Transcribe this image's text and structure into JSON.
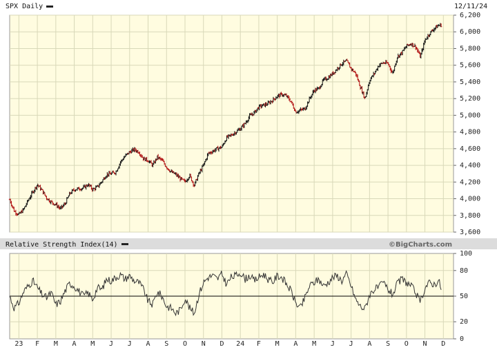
{
  "header": {
    "symbol_title": "SPX Daily",
    "date": "12/11/24"
  },
  "rsi_panel": {
    "title": "Relative Strength Index(14)"
  },
  "credit": "©BigCharts.com",
  "colors": {
    "plot_background": "#fffce0",
    "grid": "#d8d8b8",
    "panel_header": "#dcdcdc",
    "up_bar": "#111111",
    "down_bar": "#b01010",
    "rsi_line": "#333333"
  },
  "chart_data": [
    {
      "type": "line",
      "title": "SPX Daily",
      "style": "ohlc-bars",
      "ylim": [
        3600,
        6200
      ],
      "y_ticks": [
        "3,600",
        "3,800",
        "4,000",
        "4,200",
        "4,400",
        "4,600",
        "4,800",
        "5,000",
        "5,200",
        "5,400",
        "5,600",
        "5,800",
        "6,000",
        "6,200"
      ],
      "x_labels": [
        "23",
        "F",
        "M",
        "A",
        "M",
        "J",
        "J",
        "A",
        "S",
        "O",
        "N",
        "D",
        "24",
        "F",
        "M",
        "A",
        "M",
        "J",
        "J",
        "A",
        "S",
        "O",
        "N",
        "D"
      ],
      "x_label_positions": [
        0.5,
        1.5,
        2.5,
        3.5,
        4.5,
        5.5,
        6.5,
        7.5,
        8.5,
        9.5,
        10.5,
        11.5,
        12.5,
        13.5,
        14.5,
        15.5,
        16.5,
        17.5,
        18.5,
        19.5,
        20.5,
        21.5,
        22.5,
        23.5
      ],
      "x_unit": "months since Jan 2023",
      "grid": true,
      "series": [
        {
          "name": "SPX",
          "x": [
            0.0,
            0.25,
            0.5,
            0.75,
            1.0,
            1.25,
            1.5,
            1.75,
            2.0,
            2.25,
            2.5,
            2.75,
            3.0,
            3.25,
            3.5,
            3.75,
            4.0,
            4.25,
            4.5,
            4.75,
            5.0,
            5.25,
            5.5,
            5.75,
            6.0,
            6.25,
            6.5,
            6.75,
            7.0,
            7.25,
            7.5,
            7.75,
            8.0,
            8.25,
            8.5,
            8.75,
            9.0,
            9.25,
            9.5,
            9.75,
            10.0,
            10.25,
            10.5,
            10.75,
            11.0,
            11.25,
            11.5,
            11.75,
            12.0,
            12.25,
            12.5,
            12.75,
            13.0,
            13.25,
            13.5,
            13.75,
            14.0,
            14.25,
            14.5,
            14.75,
            15.0,
            15.25,
            15.5,
            15.75,
            16.0,
            16.25,
            16.5,
            16.75,
            17.0,
            17.25,
            17.5,
            17.75,
            18.0,
            18.25,
            18.5,
            18.75,
            19.0,
            19.25,
            19.5,
            19.75,
            20.0,
            20.25,
            20.5,
            20.75,
            21.0,
            21.25,
            21.5,
            21.75,
            22.0,
            22.25,
            22.5,
            22.75,
            23.0,
            23.25,
            23.4
          ],
          "values": [
            3990,
            3850,
            3810,
            3870,
            3980,
            4080,
            4170,
            4100,
            4010,
            3960,
            3930,
            3880,
            3940,
            4060,
            4110,
            4120,
            4130,
            4170,
            4110,
            4140,
            4210,
            4290,
            4300,
            4320,
            4440,
            4510,
            4560,
            4590,
            4560,
            4480,
            4460,
            4400,
            4500,
            4460,
            4380,
            4320,
            4290,
            4240,
            4200,
            4280,
            4160,
            4300,
            4400,
            4540,
            4570,
            4600,
            4620,
            4730,
            4760,
            4800,
            4840,
            4900,
            4990,
            5030,
            5100,
            5120,
            5140,
            5180,
            5230,
            5250,
            5230,
            5160,
            5040,
            5060,
            5080,
            5200,
            5300,
            5320,
            5420,
            5450,
            5500,
            5560,
            5620,
            5650,
            5560,
            5500,
            5340,
            5200,
            5420,
            5500,
            5600,
            5630,
            5620,
            5500,
            5700,
            5750,
            5830,
            5860,
            5820,
            5700,
            5900,
            5980,
            6040,
            6080,
            6080
          ]
        }
      ]
    },
    {
      "type": "line",
      "title": "Relative Strength Index(14)",
      "ylim": [
        0,
        100
      ],
      "y_ticks": [
        "0",
        "20",
        "50",
        "80",
        "100"
      ],
      "reference_line": 50,
      "grid": true,
      "series": [
        {
          "name": "RSI(14)",
          "x": [
            0.0,
            0.25,
            0.5,
            0.75,
            1.0,
            1.25,
            1.5,
            1.75,
            2.0,
            2.25,
            2.5,
            2.75,
            3.0,
            3.25,
            3.5,
            3.75,
            4.0,
            4.25,
            4.5,
            4.75,
            5.0,
            5.25,
            5.5,
            5.75,
            6.0,
            6.25,
            6.5,
            6.75,
            7.0,
            7.25,
            7.5,
            7.75,
            8.0,
            8.25,
            8.5,
            8.75,
            9.0,
            9.25,
            9.5,
            9.75,
            10.0,
            10.25,
            10.5,
            10.75,
            11.0,
            11.25,
            11.5,
            11.75,
            12.0,
            12.25,
            12.5,
            12.75,
            13.0,
            13.25,
            13.5,
            13.75,
            14.0,
            14.25,
            14.5,
            14.75,
            15.0,
            15.25,
            15.5,
            15.75,
            16.0,
            16.25,
            16.5,
            16.75,
            17.0,
            17.25,
            17.5,
            17.75,
            18.0,
            18.25,
            18.5,
            18.75,
            19.0,
            19.25,
            19.5,
            19.75,
            20.0,
            20.25,
            20.5,
            20.75,
            21.0,
            21.25,
            21.5,
            21.75,
            22.0,
            22.25,
            22.5,
            22.75,
            23.0,
            23.25,
            23.4
          ],
          "values": [
            50,
            36,
            42,
            55,
            62,
            68,
            60,
            52,
            48,
            54,
            40,
            44,
            56,
            65,
            62,
            56,
            50,
            54,
            46,
            60,
            58,
            70,
            68,
            72,
            75,
            70,
            74,
            68,
            66,
            58,
            44,
            40,
            55,
            50,
            38,
            36,
            30,
            34,
            48,
            36,
            30,
            52,
            66,
            72,
            74,
            70,
            76,
            64,
            72,
            74,
            78,
            70,
            74,
            68,
            72,
            76,
            70,
            66,
            74,
            72,
            64,
            56,
            42,
            36,
            48,
            62,
            66,
            70,
            62,
            66,
            72,
            74,
            68,
            76,
            62,
            46,
            38,
            35,
            52,
            58,
            60,
            66,
            58,
            52,
            64,
            70,
            66,
            62,
            54,
            42,
            60,
            66,
            64,
            68,
            58
          ]
        }
      ]
    }
  ]
}
